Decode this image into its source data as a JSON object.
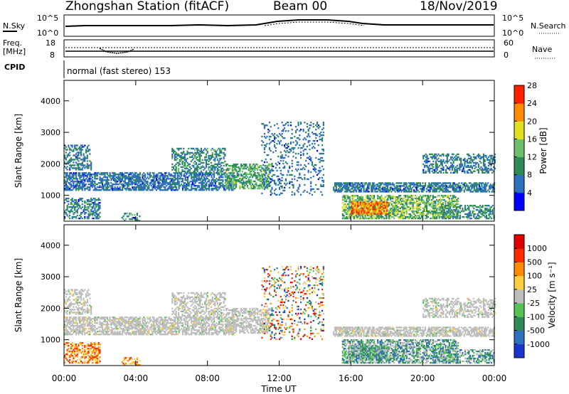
{
  "header": {
    "title": "Zhongshan Station (fitACF)",
    "beam": "Beam 00",
    "date": "18/Nov/2019"
  },
  "sky_panel": {
    "left_label": "N.Sky",
    "right_label": "N.Search",
    "left_ticks": [
      "10^5",
      "10^0"
    ],
    "right_ticks": [
      "10^5",
      "10^0"
    ]
  },
  "freq_panel": {
    "left_label_line1": "Freq.",
    "left_label_line2": "[MHz]",
    "right_label": "Nave",
    "left_ticks": [
      "18",
      "8"
    ],
    "right_ticks": [
      "60",
      "0"
    ]
  },
  "cpid": {
    "label": "CPID",
    "text": "normal (fast stereo) 153"
  },
  "chart_data": [
    {
      "type": "heatmap",
      "name": "power",
      "ylabel": "Slant Range [km]",
      "ylim": [
        180,
        4650
      ],
      "yticks": [
        "1000",
        "2000",
        "3000",
        "4000"
      ],
      "colorbar_label": "Power [dB]",
      "colorbar_ticks": [
        "4",
        "8",
        "12",
        "16",
        "20",
        "24",
        "28"
      ],
      "colorbar_colors": [
        "#0000ff",
        "#2f6fc0",
        "#2e8b57",
        "#6cbf6c",
        "#e0e020",
        "#ff8c00",
        "#ff2000"
      ],
      "scale_range": [
        0,
        30
      ]
    },
    {
      "type": "heatmap",
      "name": "velocity",
      "ylabel": "Slant Range [km]",
      "ylim": [
        180,
        4650
      ],
      "yticks": [
        "1000",
        "2000",
        "3000",
        "4000"
      ],
      "colorbar_label": "Velocity [m s⁻¹]",
      "colorbar_ticks": [
        "1000",
        "500",
        "100",
        "25",
        "-25",
        "-100",
        "-500",
        "-1000"
      ],
      "colorbar_colors": [
        "#1a33cc",
        "#2f6fc0",
        "#2e8b57",
        "#56c256",
        "#bdbdbd",
        "#ffcf40",
        "#ff8c00",
        "#ff2a00",
        "#e00000"
      ]
    }
  ],
  "time_axis": {
    "label": "Time UT",
    "ticks": [
      "00:00",
      "04:00",
      "08:00",
      "12:00",
      "16:00",
      "20:00",
      "00:00"
    ]
  }
}
